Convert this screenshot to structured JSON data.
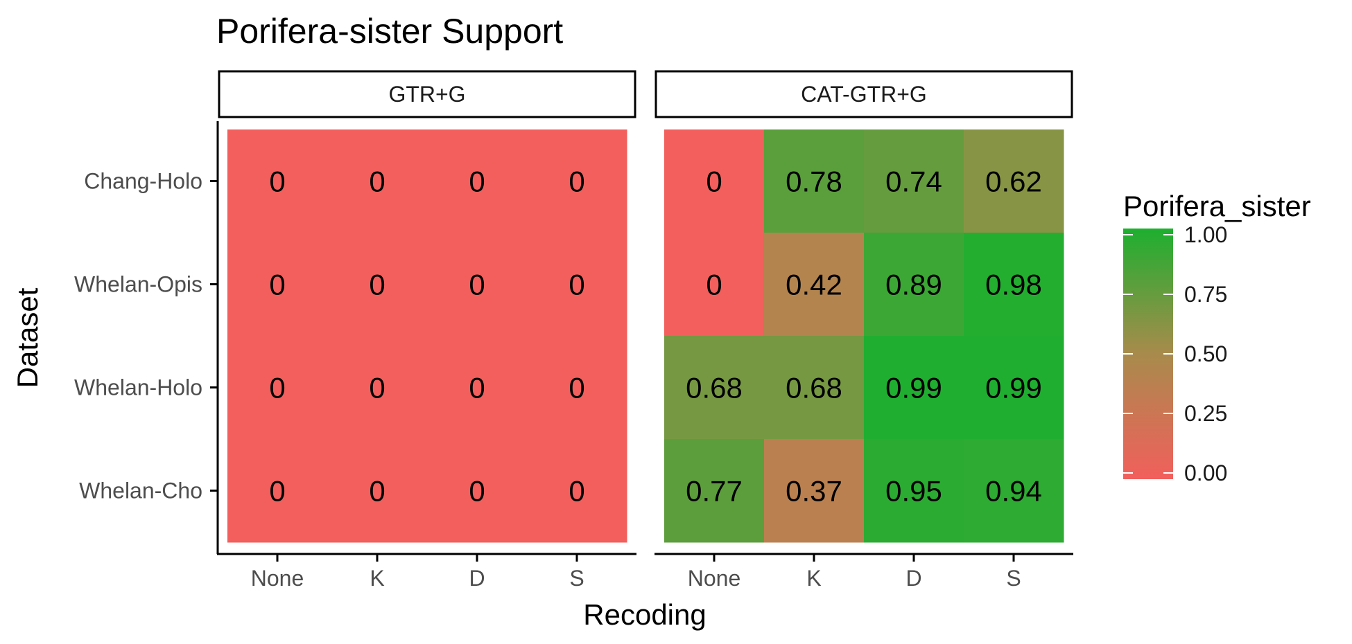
{
  "chart_data": {
    "type": "heatmap",
    "title": "Porifera-sister Support",
    "xlabel": "Recoding",
    "ylabel": "Dataset",
    "facets": [
      "GTR+G",
      "CAT-GTR+G"
    ],
    "x_categories": [
      "None",
      "K",
      "D",
      "S"
    ],
    "y_categories": [
      "Chang-Holo",
      "Whelan-Opis",
      "Whelan-Holo",
      "Whelan-Cho"
    ],
    "values": {
      "GTR+G": [
        [
          0,
          0,
          0,
          0
        ],
        [
          0,
          0,
          0,
          0
        ],
        [
          0,
          0,
          0,
          0
        ],
        [
          0,
          0,
          0,
          0
        ]
      ],
      "CAT-GTR+G": [
        [
          0,
          0.78,
          0.74,
          0.62
        ],
        [
          0,
          0.42,
          0.89,
          0.98
        ],
        [
          0.68,
          0.68,
          0.99,
          0.99
        ],
        [
          0.77,
          0.37,
          0.95,
          0.94
        ]
      ]
    },
    "labels": {
      "GTR+G": [
        [
          "0",
          "0",
          "0",
          "0"
        ],
        [
          "0",
          "0",
          "0",
          "0"
        ],
        [
          "0",
          "0",
          "0",
          "0"
        ],
        [
          "0",
          "0",
          "0",
          "0"
        ]
      ],
      "CAT-GTR+G": [
        [
          "0",
          "0.78",
          "0.74",
          "0.62"
        ],
        [
          "0",
          "0.42",
          "0.89",
          "0.98"
        ],
        [
          "0.68",
          "0.68",
          "0.99",
          "0.99"
        ],
        [
          "0.77",
          "0.37",
          "0.95",
          "0.94"
        ]
      ]
    },
    "legend": {
      "title": "Porifera_sister",
      "ticks": [
        "0.00",
        "0.25",
        "0.50",
        "0.75",
        "1.00"
      ],
      "tick_values": [
        0,
        0.25,
        0.5,
        0.75,
        1
      ],
      "placement": "right",
      "low_color": "#F25F5C",
      "mid_color": "#A88B4C",
      "high_color": "#1DAF2F"
    },
    "value_range": [
      0,
      1
    ],
    "grid": false
  }
}
